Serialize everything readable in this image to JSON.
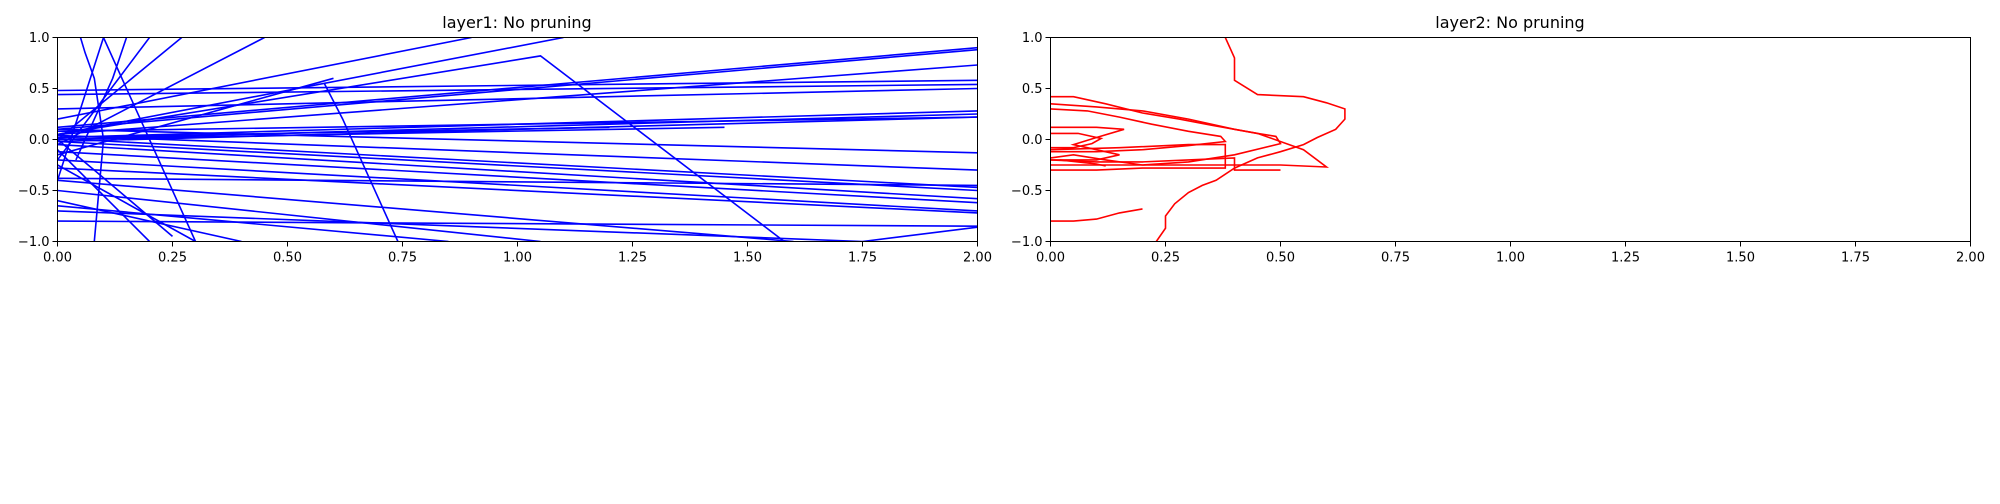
{
  "chart_data": [
    {
      "type": "line",
      "title": "layer1: No pruning",
      "xlabel": "",
      "ylabel": "",
      "xlim": [
        0,
        2
      ],
      "ylim": [
        -1,
        1
      ],
      "xticks": [
        "0.00",
        "0.25",
        "0.50",
        "0.75",
        "1.00",
        "1.25",
        "1.50",
        "1.75",
        "2.00"
      ],
      "yticks": [
        "1.0",
        "0.5",
        "0.0",
        "−0.5",
        "−1.0"
      ],
      "grid": false,
      "color": "#0000ff",
      "series": [
        {
          "x": [
            0,
            2.0
          ],
          "y": [
            0.12,
            0.9
          ]
        },
        {
          "x": [
            0,
            2.0
          ],
          "y": [
            0.1,
            0.88
          ]
        },
        {
          "x": [
            0,
            2.0
          ],
          "y": [
            0.05,
            0.73
          ]
        },
        {
          "x": [
            0,
            2.0
          ],
          "y": [
            0.48,
            0.58
          ]
        },
        {
          "x": [
            0,
            2.0
          ],
          "y": [
            0.44,
            0.54
          ]
        },
        {
          "x": [
            0,
            2.0
          ],
          "y": [
            0.3,
            0.5
          ]
        },
        {
          "x": [
            0,
            2.0
          ],
          "y": [
            0.02,
            0.28
          ]
        },
        {
          "x": [
            0,
            2.0
          ],
          "y": [
            0.0,
            0.25
          ]
        },
        {
          "x": [
            0,
            2.0
          ],
          "y": [
            -0.02,
            0.22
          ]
        },
        {
          "x": [
            0,
            2.0
          ],
          "y": [
            0.08,
            0.22
          ]
        },
        {
          "x": [
            0,
            2.0
          ],
          "y": [
            0.1,
            -0.13
          ]
        },
        {
          "x": [
            0,
            2.0
          ],
          "y": [
            0.04,
            -0.3
          ]
        },
        {
          "x": [
            0,
            2.0
          ],
          "y": [
            0.01,
            -0.47
          ]
        },
        {
          "x": [
            0,
            2.0
          ],
          "y": [
            -0.02,
            -0.5
          ]
        },
        {
          "x": [
            0,
            2.0
          ],
          "y": [
            -0.05,
            -0.58
          ]
        },
        {
          "x": [
            0,
            2.0
          ],
          "y": [
            -0.12,
            -0.62
          ]
        },
        {
          "x": [
            0,
            2.0
          ],
          "y": [
            -0.2,
            -0.7
          ]
        },
        {
          "x": [
            0,
            2.0
          ],
          "y": [
            -0.28,
            -0.72
          ]
        },
        {
          "x": [
            0,
            2.0
          ],
          "y": [
            -0.38,
            -0.45
          ]
        },
        {
          "x": [
            0,
            1.6
          ],
          "y": [
            -0.4,
            -1.0
          ]
        },
        {
          "x": [
            0,
            1.05
          ],
          "y": [
            -0.5,
            -1.0
          ]
        },
        {
          "x": [
            0,
            0.85
          ],
          "y": [
            -0.65,
            -1.0
          ]
        },
        {
          "x": [
            0,
            1.75
          ],
          "y": [
            -0.7,
            -1.0
          ]
        },
        {
          "x": [
            0,
            2.0
          ],
          "y": [
            -0.8,
            -0.85
          ]
        },
        {
          "x": [
            1.75,
            2.0
          ],
          "y": [
            -1.0,
            -0.86
          ]
        },
        {
          "x": [
            0,
            0.45
          ],
          "y": [
            -0.05,
            1.0
          ]
        },
        {
          "x": [
            0,
            0.27
          ],
          "y": [
            0.0,
            1.0
          ]
        },
        {
          "x": [
            0,
            0.2
          ],
          "y": [
            -0.2,
            1.0
          ]
        },
        {
          "x": [
            0,
            0.1
          ],
          "y": [
            -0.4,
            1.0
          ]
        },
        {
          "x": [
            0,
            0.9
          ],
          "y": [
            0.2,
            1.0
          ]
        },
        {
          "x": [
            0,
            1.1
          ],
          "y": [
            0.05,
            1.0
          ]
        },
        {
          "x": [
            0,
            0.6
          ],
          "y": [
            -0.15,
            0.6
          ]
        },
        {
          "x": [
            0,
            0.4
          ],
          "y": [
            -0.6,
            -1.0
          ]
        },
        {
          "x": [
            0,
            0.3
          ],
          "y": [
            -0.25,
            -1.0
          ]
        },
        {
          "x": [
            0,
            0.2
          ],
          "y": [
            -0.1,
            -1.0
          ]
        },
        {
          "x": [
            0.05,
            0.06,
            0.08,
            0.09,
            0.1,
            0.09,
            0.08
          ],
          "y": [
            1.0,
            0.85,
            0.6,
            0.3,
            0.0,
            -0.5,
            -1.0
          ]
        },
        {
          "x": [
            0.1,
            0.14,
            0.18,
            0.22,
            0.26,
            0.3
          ],
          "y": [
            1.0,
            0.6,
            0.2,
            -0.2,
            -0.6,
            -1.0
          ]
        },
        {
          "x": [
            0.15,
            0.12,
            0.09,
            0.06,
            0.04
          ],
          "y": [
            1.0,
            0.6,
            0.3,
            0.0,
            -0.2
          ]
        },
        {
          "x": [
            0.58,
            0.62,
            0.66,
            0.7,
            0.74
          ],
          "y": [
            0.55,
            0.2,
            -0.2,
            -0.6,
            -1.0
          ]
        },
        {
          "x": [
            0.25,
            0.08,
            0.0
          ],
          "y": [
            -0.95,
            -0.3,
            0.0
          ]
        },
        {
          "x": [
            0,
            1.05,
            1.58
          ],
          "y": [
            0.05,
            0.82,
            -1.0
          ]
        },
        {
          "x": [
            0,
            1.2
          ],
          "y": [
            0.02,
            0.12
          ]
        },
        {
          "x": [
            0,
            1.45
          ],
          "y": [
            0.0,
            0.12
          ]
        }
      ]
    },
    {
      "type": "line",
      "title": "layer2: No pruning",
      "xlabel": "",
      "ylabel": "",
      "xlim": [
        0,
        2
      ],
      "ylim": [
        -1,
        1
      ],
      "xticks": [
        "0.00",
        "0.25",
        "0.50",
        "0.75",
        "1.00",
        "1.25",
        "1.50",
        "1.75",
        "2.00"
      ],
      "yticks": [
        "1.0",
        "0.5",
        "0.0",
        "−0.5",
        "−1.0"
      ],
      "grid": false,
      "color": "#ff0000",
      "series": [
        {
          "x": [
            0.38,
            0.39,
            0.4,
            0.4,
            0.45,
            0.55,
            0.6,
            0.64,
            0.64,
            0.62,
            0.58,
            0.55,
            0.5,
            0.45,
            0.4,
            0.36,
            0.33,
            0.3,
            0.27,
            0.25,
            0.25,
            0.23
          ],
          "y": [
            1.0,
            0.9,
            0.8,
            0.58,
            0.44,
            0.42,
            0.36,
            0.3,
            0.2,
            0.1,
            0.02,
            -0.05,
            -0.12,
            -0.18,
            -0.28,
            -0.4,
            -0.45,
            -0.52,
            -0.63,
            -0.75,
            -0.87,
            -1.0
          ]
        },
        {
          "x": [
            0.0,
            0.05,
            0.12,
            0.2,
            0.28,
            0.35,
            0.45,
            0.55,
            0.6,
            0.5,
            0.4,
            0.3,
            0.2,
            0.12,
            0.06,
            0.0
          ],
          "y": [
            0.42,
            0.42,
            0.35,
            0.26,
            0.2,
            0.14,
            0.06,
            -0.1,
            -0.27,
            -0.25,
            -0.25,
            -0.25,
            -0.25,
            -0.25,
            -0.25,
            -0.25
          ]
        },
        {
          "x": [
            0.0,
            0.1,
            0.2,
            0.3,
            0.4,
            0.45,
            0.49,
            0.5,
            0.4,
            0.3,
            0.2,
            0.12,
            0.05,
            0.0
          ],
          "y": [
            0.35,
            0.32,
            0.28,
            0.2,
            0.1,
            0.06,
            0.03,
            -0.04,
            -0.15,
            -0.22,
            -0.25,
            -0.2,
            -0.15,
            -0.18
          ]
        },
        {
          "x": [
            0.0,
            0.08,
            0.15,
            0.22,
            0.3,
            0.37,
            0.38,
            0.3,
            0.2,
            0.1,
            0.0
          ],
          "y": [
            0.3,
            0.28,
            0.22,
            0.15,
            0.08,
            0.03,
            -0.02,
            -0.06,
            -0.1,
            -0.12,
            -0.12
          ]
        },
        {
          "x": [
            0.0,
            0.1,
            0.16,
            0.1,
            0.05,
            0.1,
            0.15,
            0.1,
            0.0
          ],
          "y": [
            0.12,
            0.12,
            0.1,
            0.02,
            -0.05,
            -0.1,
            -0.15,
            -0.2,
            -0.2
          ]
        },
        {
          "x": [
            0.0,
            0.06,
            0.11,
            0.09,
            0.05,
            0.0
          ],
          "y": [
            0.06,
            0.06,
            0.01,
            -0.04,
            -0.08,
            -0.08
          ]
        },
        {
          "x": [
            0.0,
            0.1,
            0.2,
            0.3,
            0.38,
            0.38,
            0.3,
            0.15,
            0.0
          ],
          "y": [
            -0.3,
            -0.3,
            -0.28,
            -0.28,
            -0.28,
            -0.05,
            -0.05,
            -0.08,
            -0.1
          ]
        },
        {
          "x": [
            0.0,
            0.1,
            0.2,
            0.3,
            0.4,
            0.4,
            0.45,
            0.5
          ],
          "y": [
            -0.2,
            -0.22,
            -0.22,
            -0.2,
            -0.18,
            -0.3,
            -0.3,
            -0.3
          ]
        },
        {
          "x": [
            0.0,
            0.05,
            0.1,
            0.15,
            0.2
          ],
          "y": [
            -0.8,
            -0.8,
            -0.78,
            -0.72,
            -0.68
          ]
        },
        {
          "x": [
            0.02,
            0.06,
            0.1,
            0.12
          ],
          "y": [
            -0.2,
            -0.22,
            -0.24,
            -0.26
          ]
        }
      ]
    }
  ]
}
